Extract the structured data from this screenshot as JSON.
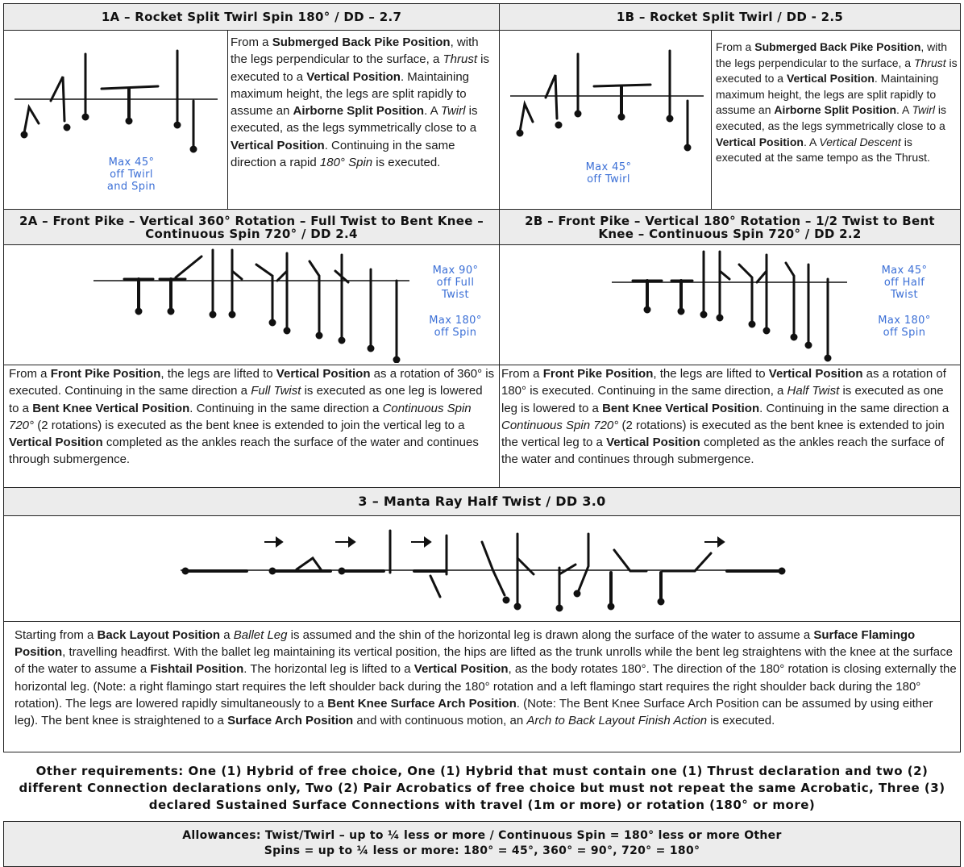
{
  "section1a": {
    "title": "1A – Rocket Split Twirl Spin 180° / DD – 2.7",
    "note": [
      "Max 45°",
      "off Twirl",
      "and Spin"
    ],
    "desc": [
      {
        "t": "From a "
      },
      {
        "t": "Submerged Back Pike Position",
        "b": true
      },
      {
        "t": ", with the legs perpendicular to the surface, a "
      },
      {
        "t": "Thrust",
        "i": true
      },
      {
        "t": " is executed to a "
      },
      {
        "t": "Vertical Position",
        "b": true
      },
      {
        "t": ". Maintaining maximum height, the legs are split rapidly to assume an "
      },
      {
        "t": "Airborne Split Position",
        "b": true
      },
      {
        "t": ". A "
      },
      {
        "t": "Twirl",
        "i": true
      },
      {
        "t": " is executed, as the legs symmetrically close to a "
      },
      {
        "t": "Vertical Position",
        "b": true
      },
      {
        "t": ". Continuing in the same direction a rapid "
      },
      {
        "t": "180° Spin",
        "i": true
      },
      {
        "t": " is executed."
      }
    ]
  },
  "section1b": {
    "title": "1B – Rocket Split Twirl / DD - 2.5",
    "note": [
      "Max 45°",
      "off Twirl"
    ],
    "desc": [
      {
        "t": "From a "
      },
      {
        "t": "Submerged Back Pike Position",
        "b": true
      },
      {
        "t": ", with the legs perpendicular to the surface, a "
      },
      {
        "t": "Thrust",
        "i": true
      },
      {
        "t": " is executed to a "
      },
      {
        "t": "Vertical Position",
        "b": true
      },
      {
        "t": ". Maintaining maximum height, the legs are split rapidly to assume an "
      },
      {
        "t": "Airborne Split Position",
        "b": true
      },
      {
        "t": ". A "
      },
      {
        "t": "Twirl",
        "i": true
      },
      {
        "t": " is executed, as the legs symmetrically close to a "
      },
      {
        "t": "Vertical Position",
        "b": true
      },
      {
        "t": ". A "
      },
      {
        "t": "Vertical Descent",
        "i": true
      },
      {
        "t": " is executed at the same tempo as the Thrust."
      }
    ]
  },
  "section2a": {
    "title": "2A – Front Pike – Vertical 360° Rotation – Full Twist to Bent Knee – Continuous Spin 720° / DD 2.4",
    "note1": [
      "Max 90°",
      "off Full",
      "Twist"
    ],
    "note2": [
      "Max 180°",
      "off Spin"
    ],
    "desc": [
      {
        "t": "From a "
      },
      {
        "t": "Front Pike Position",
        "b": true
      },
      {
        "t": ", the legs are lifted to "
      },
      {
        "t": "Vertical Position",
        "b": true
      },
      {
        "t": " as a rotation of 360° is executed. Continuing in the same direction a "
      },
      {
        "t": "Full Twist",
        "i": true
      },
      {
        "t": " is executed as one leg is lowered to a "
      },
      {
        "t": "Bent Knee Vertical Position",
        "b": true
      },
      {
        "t": ". Continuing in the same direction a "
      },
      {
        "t": "Continuous Spin 720°",
        "i": true
      },
      {
        "t": " (2 rotations) is executed as the bent knee is extended to join the vertical leg to a "
      },
      {
        "t": "Vertical Position",
        "b": true
      },
      {
        "t": " completed as the ankles reach the surface of the water and continues through submergence."
      }
    ]
  },
  "section2b": {
    "title": "2B – Front Pike – Vertical 180° Rotation – 1/2 Twist to Bent Knee – Continuous Spin 720° / DD 2.2",
    "note1": [
      "Max 45°",
      "off Half",
      "Twist"
    ],
    "note2": [
      "Max 180°",
      "off Spin"
    ],
    "desc": [
      {
        "t": "From a "
      },
      {
        "t": "Front Pike Position",
        "b": true
      },
      {
        "t": ", the legs are lifted to "
      },
      {
        "t": "Vertical Position",
        "b": true
      },
      {
        "t": " as a rotation of 180° is executed. Continuing in the same direction, a "
      },
      {
        "t": "Half Twist",
        "i": true
      },
      {
        "t": " is executed as one leg is lowered to a "
      },
      {
        "t": "Bent Knee Vertical Position",
        "b": true
      },
      {
        "t": ". Continuing in the same direction a "
      },
      {
        "t": "Continuous Spin 720°",
        "i": true
      },
      {
        "t": " (2 rotations) is executed as the bent knee is extended to join the vertical leg to a "
      },
      {
        "t": "Vertical Position",
        "b": true
      },
      {
        "t": " completed as the ankles reach the surface of the water and continues through submergence."
      }
    ]
  },
  "section3": {
    "title": "3 – Manta Ray Half Twist / DD 3.0",
    "desc": [
      {
        "t": "Starting from a "
      },
      {
        "t": "Back Layout Position",
        "b": true
      },
      {
        "t": " a "
      },
      {
        "t": "Ballet Leg",
        "i": true
      },
      {
        "t": " is assumed and the shin of the horizontal leg is drawn along the surface of the water to assume a "
      },
      {
        "t": "Surface Flamingo Position",
        "b": true
      },
      {
        "t": ", travelling headfirst. With the ballet leg maintaining its vertical position, the hips are lifted as the trunk unrolls while the bent leg straightens with the knee at the surface of the water to assume a "
      },
      {
        "t": "Fishtail Position",
        "b": true
      },
      {
        "t": ". The horizontal leg is lifted to a "
      },
      {
        "t": "Vertical Position",
        "b": true
      },
      {
        "t": ", as the body rotates 180°. The direction of the 180° rotation is closing externally the horizontal leg. (Note: a right flamingo start requires the left shoulder back during the 180° rotation and a left flamingo start requires the right shoulder back during the 180° rotation). The legs are lowered rapidly simultaneously to a "
      },
      {
        "t": "Bent Knee Surface Arch Position",
        "b": true
      },
      {
        "t": ". (Note: The Bent Knee Surface Arch Position can be assumed by using either leg). The bent knee is straightened to a "
      },
      {
        "t": "Surface Arch Position",
        "b": true
      },
      {
        "t": " and with continuous motion, an "
      },
      {
        "t": "Arch to Back Layout Finish Action",
        "i": true
      },
      {
        "t": " is executed."
      }
    ]
  },
  "requirements": "Other requirements: One (1) Hybrid of free choice, One (1) Hybrid that must contain one (1) Thrust declaration and two (2) different Connection declarations only, Two (2) Pair Acrobatics of free choice but must not repeat the same Acrobatic, Three (3) declared Sustained Surface Connections with travel (1m or more) or rotation (180° or more)",
  "allowances": {
    "line1": "Allowances: Twist/Twirl – up to ¼ less or more / Continuous Spin = 180° less or more Other",
    "line2": "Spins = up to ¼ less or more: 180° = 45°, 360° = 90°, 720° = 180°"
  },
  "icons": {
    "diver": "swimmer-figure-icon",
    "arrow": "direction-arrow-icon",
    "water": "water-surface-line"
  }
}
